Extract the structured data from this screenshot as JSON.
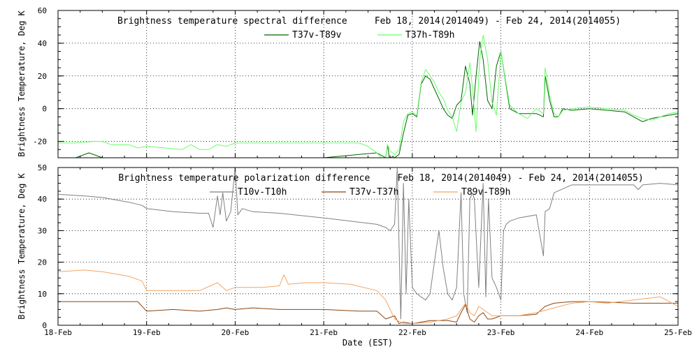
{
  "chart_data": [
    {
      "type": "line",
      "title": "Brightness temperature spectral difference     Feb 18, 2014(2014049) - Feb 24, 2014(2014055)",
      "xlabel": "",
      "ylabel": "Brightness Temperature, Deg K",
      "xlim": [
        0,
        7
      ],
      "ylim": [
        -30,
        60
      ],
      "yticks": [
        -20,
        0,
        20,
        40,
        60
      ],
      "grid": true,
      "legend": "top-center",
      "series": [
        {
          "name": "T37v-T89v",
          "color": "#006400",
          "x": [
            0,
            0.2,
            0.35,
            0.5,
            0.7,
            0.9,
            1.0,
            1.5,
            2.0,
            2.3,
            2.5,
            2.8,
            3.0,
            3.4,
            3.6,
            3.7,
            3.72,
            3.74,
            3.76,
            3.78,
            3.8,
            3.85,
            3.9,
            3.95,
            4.0,
            4.05,
            4.1,
            4.15,
            4.2,
            4.25,
            4.3,
            4.35,
            4.4,
            4.45,
            4.5,
            4.55,
            4.6,
            4.65,
            4.68,
            4.72,
            4.76,
            4.8,
            4.85,
            4.9,
            4.95,
            5.0,
            5.1,
            5.2,
            5.3,
            5.4,
            5.48,
            5.5,
            5.55,
            5.6,
            5.65,
            5.7,
            5.8,
            6.0,
            6.2,
            6.4,
            6.5,
            6.6,
            6.7,
            6.8,
            6.9,
            7.0
          ],
          "y": [
            -30,
            -30,
            -27,
            -30,
            -30,
            -30,
            -30,
            -30,
            -30,
            -30,
            -30,
            -30,
            -30,
            -28,
            -27,
            -30,
            -22,
            -30,
            -30,
            -29,
            -30,
            -28,
            -15,
            -4,
            -3,
            -5,
            15,
            20,
            18,
            12,
            6,
            0,
            -4,
            -6,
            2,
            5,
            26,
            15,
            -4,
            20,
            41,
            30,
            5,
            0,
            26,
            35,
            0,
            -3,
            -3,
            -3,
            -5,
            20,
            5,
            -5,
            -5,
            0,
            -1,
            0,
            -1,
            -2,
            -5,
            -8,
            -6,
            -5,
            -4,
            -3
          ]
        },
        {
          "name": "T37h-T89h",
          "color": "#66ff66",
          "x": [
            0,
            0.2,
            0.4,
            0.5,
            0.6,
            0.8,
            0.9,
            1.0,
            1.2,
            1.4,
            1.5,
            1.6,
            1.7,
            1.8,
            1.9,
            2.0,
            2.2,
            2.5,
            2.8,
            3.0,
            3.2,
            3.4,
            3.5,
            3.55,
            3.6,
            3.65,
            3.7,
            3.72,
            3.75,
            3.8,
            3.85,
            3.9,
            3.95,
            4.0,
            4.05,
            4.1,
            4.15,
            4.2,
            4.25,
            4.3,
            4.35,
            4.4,
            4.45,
            4.5,
            4.55,
            4.6,
            4.65,
            4.68,
            4.72,
            4.76,
            4.8,
            4.85,
            4.9,
            4.95,
            5.0,
            5.1,
            5.2,
            5.3,
            5.4,
            5.48,
            5.5,
            5.55,
            5.6,
            5.65,
            5.7,
            5.8,
            6.0,
            6.2,
            6.4,
            6.5,
            6.6,
            6.7,
            6.8,
            6.9,
            7.0
          ],
          "y": [
            -21,
            -21,
            -20,
            -20,
            -22,
            -22,
            -24,
            -23,
            -24,
            -25,
            -22,
            -25,
            -25,
            -22,
            -23,
            -21,
            -21,
            -21,
            -21,
            -21,
            -21,
            -21,
            -23,
            -25,
            -27,
            -30,
            -30,
            -22,
            -26,
            -28,
            -25,
            -8,
            -3,
            -2,
            -4,
            16,
            24,
            20,
            16,
            10,
            6,
            -1,
            -5,
            -14,
            4,
            10,
            28,
            12,
            -14,
            30,
            45,
            30,
            4,
            -4,
            35,
            2,
            -3,
            -6,
            0,
            -3,
            25,
            8,
            -3,
            -5,
            -1,
            0,
            1,
            0,
            -1,
            -4,
            -6,
            -7,
            -5,
            -3,
            -2
          ]
        }
      ]
    },
    {
      "type": "line",
      "title": "Brightness temperature polarization difference     Feb 18, 2014(2014049) - Feb 24, 2014(2014055)",
      "xlabel": "Date (EST)",
      "ylabel": "Brightness Temperature, Deg K",
      "xlim": [
        0,
        7
      ],
      "ylim": [
        0,
        50
      ],
      "yticks": [
        0,
        10,
        20,
        30,
        40,
        50
      ],
      "xticks": [
        "18-Feb",
        "19-Feb",
        "20-Feb",
        "21-Feb",
        "22-Feb",
        "23-Feb",
        "24-Feb",
        "25-Feb"
      ],
      "grid": true,
      "legend": "top-center",
      "series": [
        {
          "name": "T10v-T10h",
          "color": "#808080",
          "x": [
            0,
            0.3,
            0.5,
            0.8,
            0.95,
            1.0,
            1.3,
            1.6,
            1.7,
            1.75,
            1.8,
            1.83,
            1.86,
            1.9,
            1.95,
            2.0,
            2.03,
            2.08,
            2.2,
            2.5,
            3.0,
            3.3,
            3.6,
            3.7,
            3.75,
            3.8,
            3.83,
            3.87,
            3.9,
            3.93,
            3.96,
            4.0,
            4.05,
            4.1,
            4.15,
            4.2,
            4.25,
            4.3,
            4.35,
            4.4,
            4.45,
            4.5,
            4.55,
            4.58,
            4.62,
            4.65,
            4.68,
            4.7,
            4.75,
            4.8,
            4.83,
            4.86,
            4.9,
            4.95,
            5.0,
            5.03,
            5.06,
            5.1,
            5.2,
            5.4,
            5.48,
            5.5,
            5.55,
            5.6,
            5.8,
            6.0,
            6.2,
            6.4,
            6.5,
            6.55,
            6.6,
            6.8,
            7.0
          ],
          "y": [
            41.5,
            41,
            40.5,
            39,
            38,
            37,
            36,
            35.5,
            35.5,
            31,
            41,
            35,
            42,
            33,
            36,
            50,
            35,
            37,
            36,
            35.5,
            34,
            33,
            32,
            31,
            30,
            32,
            50,
            2,
            45,
            10,
            40,
            12,
            10,
            9,
            8,
            10,
            20,
            30,
            18,
            10,
            8,
            12,
            42,
            10,
            4,
            40,
            42,
            40,
            12,
            45,
            9,
            40,
            15,
            12,
            8,
            30,
            32,
            33,
            34,
            35,
            22,
            36,
            37,
            42,
            44.5,
            44.5,
            44.5,
            44.5,
            44.5,
            43,
            44.5,
            45,
            44.5
          ]
        },
        {
          "name": "T37v-T37h",
          "color": "#8b4513",
          "x": [
            0,
            0.5,
            0.9,
            1.0,
            1.3,
            1.6,
            1.8,
            1.9,
            2.0,
            2.2,
            2.5,
            3.0,
            3.4,
            3.6,
            3.7,
            3.8,
            3.85,
            3.9,
            4.0,
            4.2,
            4.4,
            4.5,
            4.55,
            4.6,
            4.65,
            4.7,
            4.75,
            4.8,
            4.85,
            4.9,
            5.0,
            5.2,
            5.4,
            5.5,
            5.6,
            5.8,
            6.0,
            6.5,
            7.0
          ],
          "y": [
            7.5,
            7.5,
            7.5,
            4.5,
            5,
            4.5,
            5,
            5.5,
            5,
            5.5,
            5,
            5,
            4.5,
            4.5,
            2,
            3,
            0.5,
            1,
            0.5,
            1.5,
            1.5,
            1,
            4,
            6.5,
            2,
            1,
            3,
            4,
            2,
            2,
            3,
            3,
            3.5,
            6,
            7,
            7.5,
            7.5,
            7,
            7
          ]
        },
        {
          "name": "T89v-T89h",
          "color": "#f4a460",
          "x": [
            0,
            0.3,
            0.5,
            0.8,
            0.95,
            1.0,
            1.3,
            1.6,
            1.8,
            1.9,
            2.0,
            2.3,
            2.5,
            2.55,
            2.6,
            2.8,
            3.0,
            3.3,
            3.6,
            3.7,
            3.8,
            3.9,
            4.0,
            4.2,
            4.4,
            4.5,
            4.6,
            4.65,
            4.7,
            4.75,
            4.8,
            4.9,
            5.0,
            5.2,
            5.4,
            5.6,
            5.8,
            6.0,
            6.2,
            6.5,
            6.8,
            7.0
          ],
          "y": [
            17,
            17.5,
            17,
            15.5,
            14,
            11,
            11,
            11,
            13.5,
            11,
            12,
            12,
            12.5,
            16,
            13,
            13.5,
            13.5,
            13,
            11,
            8,
            2,
            0.5,
            0.5,
            1,
            2,
            3,
            7,
            4,
            3,
            6,
            5,
            3,
            3,
            3,
            4,
            5.5,
            7,
            7.5,
            7,
            8,
            9,
            6
          ]
        }
      ]
    }
  ]
}
